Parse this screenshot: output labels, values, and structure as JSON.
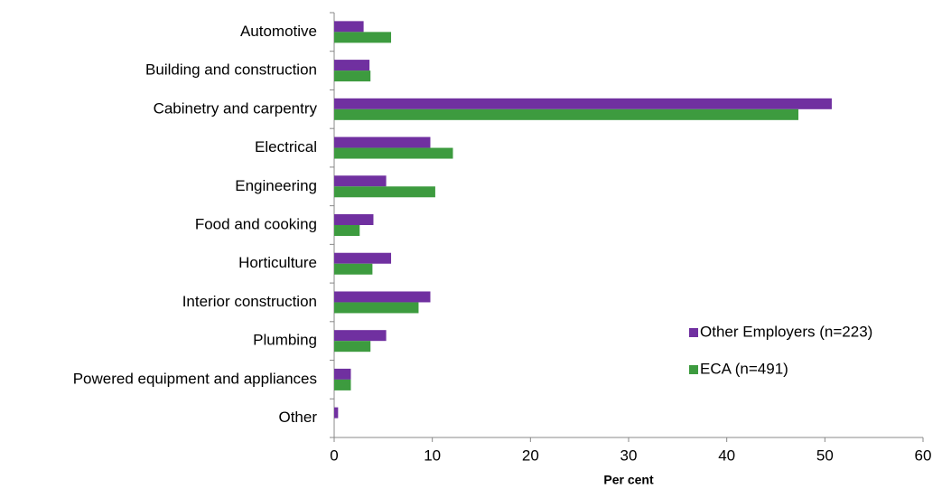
{
  "chart_data": {
    "type": "hbar",
    "x_label": "Per cent",
    "categories": [
      "Automotive",
      "Building and construction",
      "Cabinetry and carpentry",
      "Electrical",
      "Engineering",
      "Food and cooking",
      "Horticulture",
      "Interior construction",
      "Plumbing",
      "Powered equipment and appliances",
      "Other"
    ],
    "series": [
      {
        "name": "Other Employers (n=223)",
        "color": "#7030a0",
        "values": [
          3.0,
          3.6,
          50.7,
          9.8,
          5.3,
          4.0,
          5.8,
          9.8,
          5.3,
          1.7,
          0.4
        ]
      },
      {
        "name": "ECA (n=491)",
        "color": "#3d9b3f",
        "values": [
          5.8,
          3.7,
          47.3,
          12.1,
          10.3,
          2.6,
          3.9,
          8.6,
          3.7,
          1.7,
          0
        ]
      }
    ],
    "xlim": [
      0,
      60
    ],
    "xticks": [
      0,
      10,
      20,
      30,
      40,
      50,
      60
    ],
    "grid": false,
    "legend": "right"
  }
}
